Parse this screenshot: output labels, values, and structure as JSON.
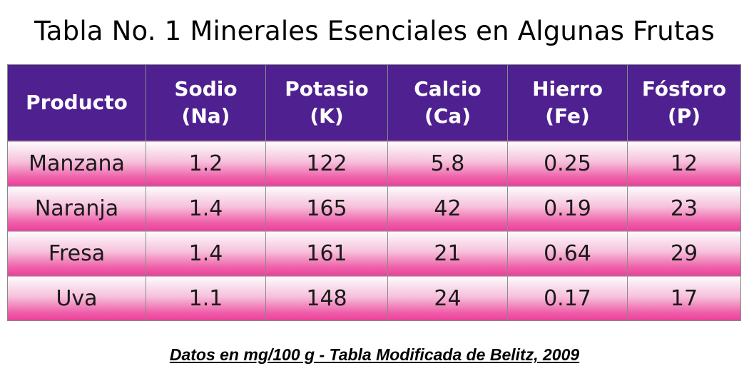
{
  "title": "Tabla No. 1 Minerales Esenciales en Algunas Frutas",
  "table": {
    "headers": [
      {
        "line1": "Producto",
        "line2": ""
      },
      {
        "line1": "Sodio",
        "line2": "(Na)"
      },
      {
        "line1": "Potasio",
        "line2": "(K)"
      },
      {
        "line1": "Calcio",
        "line2": "(Ca)"
      },
      {
        "line1": "Hierro",
        "line2": "(Fe)"
      },
      {
        "line1": "Fósforo",
        "line2": "(P)"
      }
    ],
    "rows": [
      [
        "Manzana",
        "1.2",
        "122",
        "5.8",
        "0.25",
        "12"
      ],
      [
        "Naranja",
        "1.4",
        "165",
        "42",
        "0.19",
        "23"
      ],
      [
        "Fresa",
        "1.4",
        "161",
        "21",
        "0.64",
        "29"
      ],
      [
        "Uva",
        "1.1",
        "148",
        "24",
        "0.17",
        "17"
      ]
    ]
  },
  "footnote": "Datos en mg/100 g - Tabla Modificada de Belitz, 2009",
  "colors": {
    "header_bg": "#4e2090",
    "header_text": "#ffffff",
    "row_gradient_top": "#fcfcfd",
    "row_gradient_bottom": "#ec3f99",
    "border": "#8a8a8a"
  }
}
